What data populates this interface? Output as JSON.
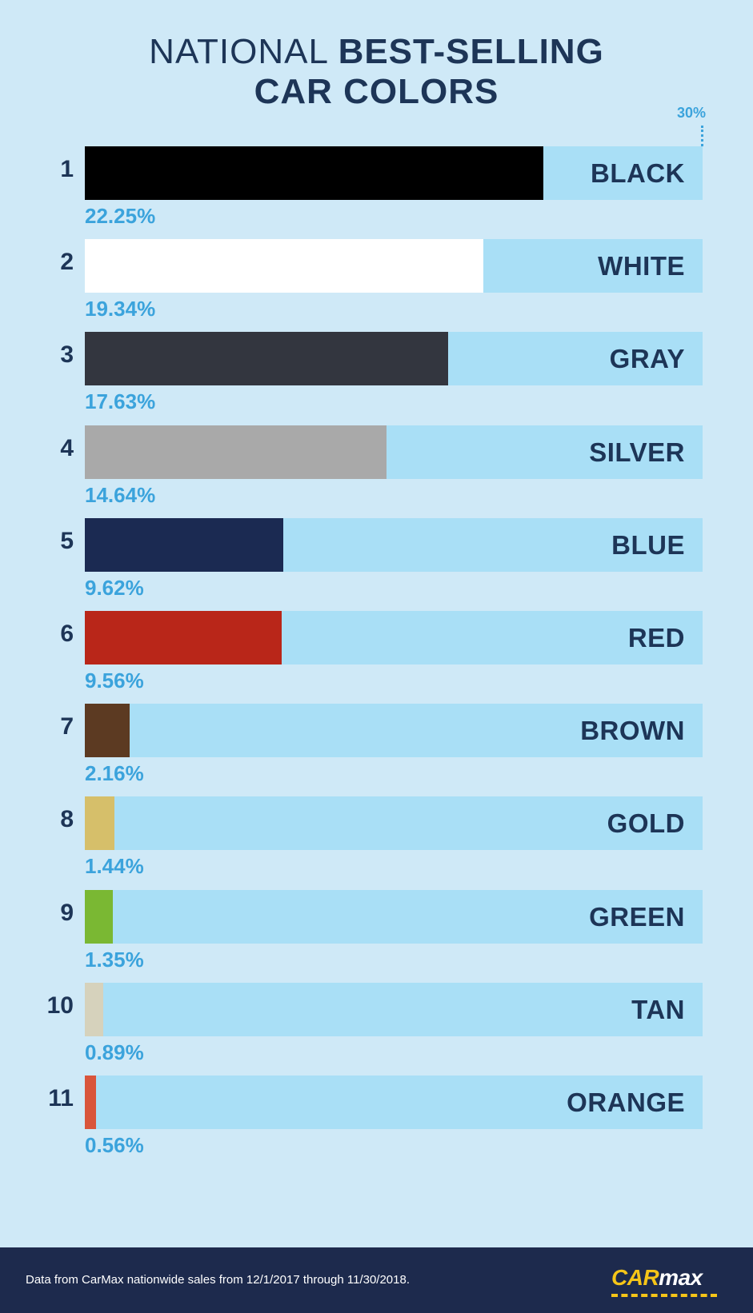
{
  "title": {
    "line1_normal": "NATIONAL",
    "line1_bold": "BEST-SELLING",
    "line2": "CAR COLORS"
  },
  "chart_data": {
    "type": "bar",
    "orientation": "horizontal",
    "scale_max": 30,
    "scale_label": "30%",
    "grid": false,
    "legend": "none",
    "categories": [
      "BLACK",
      "WHITE",
      "GRAY",
      "SILVER",
      "BLUE",
      "RED",
      "BROWN",
      "GOLD",
      "GREEN",
      "TAN",
      "ORANGE"
    ],
    "ranks": [
      "1",
      "2",
      "3",
      "4",
      "5",
      "6",
      "7",
      "8",
      "9",
      "10",
      "11"
    ],
    "values": [
      22.25,
      19.34,
      17.63,
      14.64,
      9.62,
      9.56,
      2.16,
      1.44,
      1.35,
      0.89,
      0.56
    ],
    "value_labels": [
      "22.25%",
      "19.34%",
      "17.63%",
      "14.64%",
      "9.62%",
      "9.56%",
      "2.16%",
      "1.44%",
      "1.35%",
      "0.89%",
      "0.56%"
    ],
    "colors": [
      "#000000",
      "#ffffff",
      "#33363f",
      "#a9a9a9",
      "#1b2a52",
      "#b92619",
      "#5c3a22",
      "#d6bf6a",
      "#7ab833",
      "#d6d2bc",
      "#d9553b"
    ],
    "track_color": "#a9dff6"
  },
  "footer": {
    "note": "Data from CarMax nationwide sales from 12/1/2017 through 11/30/2018.",
    "logo_car": "CAR",
    "logo_max": "max"
  }
}
